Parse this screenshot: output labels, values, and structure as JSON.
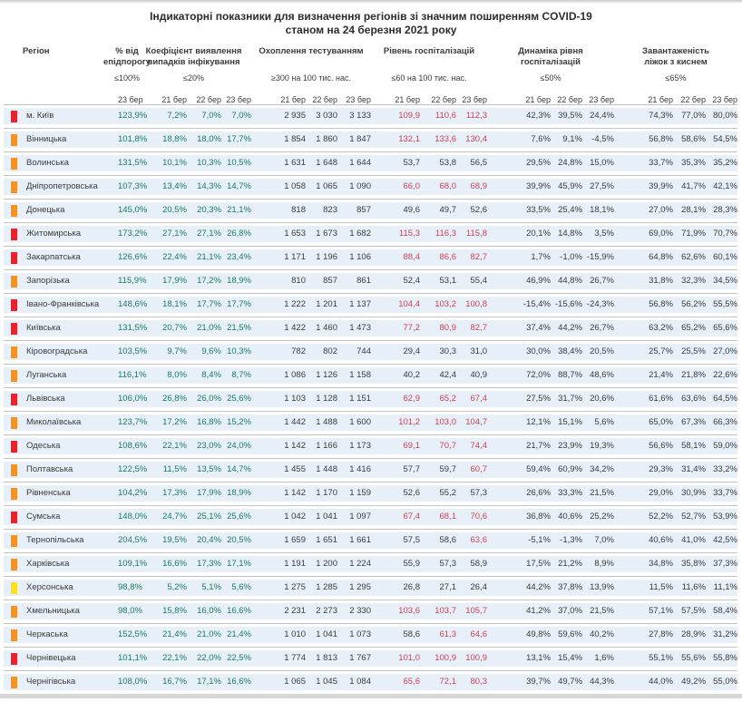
{
  "title_line1": "Індикаторні показники для визначення регіонів зі значним поширенням COVID-19",
  "title_line2": "станом на 24 березня 2021 року",
  "columns": {
    "region_label": "Регіон",
    "groups": [
      {
        "label_lines": [
          "% від",
          "епідпорогу"
        ],
        "threshold": "≤100%",
        "dates": [
          "23 бер"
        ]
      },
      {
        "label_lines": [
          "Коефіцієнт виявлення",
          "випадків інфікування"
        ],
        "threshold": "≤20%",
        "dates": [
          "21 бер",
          "22 бер",
          "23 бер"
        ]
      },
      {
        "label_lines": [
          "Охоплення тестуванням"
        ],
        "threshold": "≥300 на 100 тис. нас.",
        "dates": [
          "21 бер",
          "22 бер",
          "23 бер"
        ]
      },
      {
        "label_lines": [
          "Рівень госпіталізацій"
        ],
        "threshold": "≤60 на 100 тис. нас.",
        "dates": [
          "21 бер",
          "22 бер",
          "23 бер"
        ]
      },
      {
        "label_lines": [
          "Динаміка рівня",
          "госпіталізацій"
        ],
        "threshold": "≤50%",
        "dates": [
          "21 бер",
          "22 бер",
          "23 бер"
        ]
      },
      {
        "label_lines": [
          "Завантаженість",
          "ліжок з киснем"
        ],
        "threshold": "≤65%",
        "dates": [
          "21 бер",
          "22 бер",
          "23 бер"
        ]
      }
    ]
  },
  "colors": {
    "status_red": "#e9222c",
    "status_orange": "#f6921e",
    "status_yellow": "#ffe01e",
    "text_green": "#1c7a62",
    "text_red": "#cc3f58",
    "text_dark": "#3b3b3a",
    "row_band": "#e7f0f8"
  },
  "hosp_red_threshold": 60,
  "rows": [
    {
      "region": "м. Київ",
      "status": "red",
      "epid": "123,9%",
      "coef": [
        "7,2%",
        "7,0%",
        "7,0%"
      ],
      "test": [
        "2 935",
        "3 030",
        "3 133"
      ],
      "hosp": [
        "109,9",
        "110,6",
        "112,3"
      ],
      "dyn": [
        "42,3%",
        "39,5%",
        "24,4%"
      ],
      "beds": [
        "74,3%",
        "77,0%",
        "80,0%"
      ]
    },
    {
      "region": "Вінницька",
      "status": "orange",
      "epid": "101,8%",
      "coef": [
        "18,8%",
        "18,0%",
        "17,7%"
      ],
      "test": [
        "1 854",
        "1 860",
        "1 847"
      ],
      "hosp": [
        "132,1",
        "133,6",
        "130,4"
      ],
      "dyn": [
        "7,6%",
        "9,1%",
        "-4,5%"
      ],
      "beds": [
        "56,8%",
        "58,6%",
        "54,5%"
      ]
    },
    {
      "region": "Волинська",
      "status": "orange",
      "epid": "131,5%",
      "coef": [
        "10,1%",
        "10,3%",
        "10,5%"
      ],
      "test": [
        "1 631",
        "1 648",
        "1 644"
      ],
      "hosp": [
        "53,7",
        "53,8",
        "56,5"
      ],
      "dyn": [
        "29,5%",
        "24,8%",
        "15,0%"
      ],
      "beds": [
        "33,7%",
        "35,3%",
        "35,2%"
      ]
    },
    {
      "region": "Дніпропетровська",
      "status": "orange",
      "epid": "107,3%",
      "coef": [
        "13,4%",
        "14,3%",
        "14,7%"
      ],
      "test": [
        "1 058",
        "1 065",
        "1 090"
      ],
      "hosp": [
        "66,0",
        "68,0",
        "68,9"
      ],
      "dyn": [
        "39,9%",
        "45,9%",
        "27,5%"
      ],
      "beds": [
        "39,9%",
        "41,7%",
        "42,1%"
      ]
    },
    {
      "region": "Донецька",
      "status": "orange",
      "epid": "145,0%",
      "coef": [
        "20,5%",
        "20,3%",
        "21,1%"
      ],
      "test": [
        "818",
        "823",
        "857"
      ],
      "hosp": [
        "49,6",
        "49,7",
        "52,6"
      ],
      "dyn": [
        "33,5%",
        "25,4%",
        "18,1%"
      ],
      "beds": [
        "27,0%",
        "28,1%",
        "28,3%"
      ]
    },
    {
      "region": "Житомирська",
      "status": "red",
      "epid": "173,2%",
      "coef": [
        "27,1%",
        "27,1%",
        "26,8%"
      ],
      "test": [
        "1 653",
        "1 673",
        "1 682"
      ],
      "hosp": [
        "115,3",
        "116,3",
        "115,8"
      ],
      "dyn": [
        "20,1%",
        "14,8%",
        "3,5%"
      ],
      "beds": [
        "69,0%",
        "71,9%",
        "70,7%"
      ]
    },
    {
      "region": "Закарпатська",
      "status": "red",
      "epid": "126,6%",
      "coef": [
        "22,4%",
        "21,1%",
        "23,4%"
      ],
      "test": [
        "1 171",
        "1 196",
        "1 106"
      ],
      "hosp": [
        "88,4",
        "86,6",
        "82,7"
      ],
      "dyn": [
        "1,7%",
        "-1,0%",
        "-15,9%"
      ],
      "beds": [
        "64,8%",
        "62,6%",
        "60,1%"
      ]
    },
    {
      "region": "Запорізька",
      "status": "orange",
      "epid": "115,9%",
      "coef": [
        "17,9%",
        "17,2%",
        "18,9%"
      ],
      "test": [
        "810",
        "857",
        "861"
      ],
      "hosp": [
        "52,4",
        "53,1",
        "55,4"
      ],
      "dyn": [
        "46,9%",
        "44,8%",
        "26,7%"
      ],
      "beds": [
        "31,8%",
        "32,3%",
        "34,5%"
      ]
    },
    {
      "region": "Івано-Франківська",
      "status": "red",
      "epid": "148,6%",
      "coef": [
        "18,1%",
        "17,7%",
        "17,7%"
      ],
      "test": [
        "1 222",
        "1 201",
        "1 137"
      ],
      "hosp": [
        "104,4",
        "103,2",
        "100,8"
      ],
      "dyn": [
        "-15,4%",
        "-15,6%",
        "-24,3%"
      ],
      "beds": [
        "56,8%",
        "56,2%",
        "55,5%"
      ]
    },
    {
      "region": "Київська",
      "status": "red",
      "epid": "131,5%",
      "coef": [
        "20,7%",
        "21,0%",
        "21,5%"
      ],
      "test": [
        "1 422",
        "1 460",
        "1 473"
      ],
      "hosp": [
        "77,2",
        "80,9",
        "82,7"
      ],
      "dyn": [
        "37,4%",
        "44,2%",
        "26,7%"
      ],
      "beds": [
        "63,2%",
        "65,2%",
        "65,6%"
      ]
    },
    {
      "region": "Кіровоградська",
      "status": "orange",
      "epid": "103,5%",
      "coef": [
        "9,7%",
        "9,6%",
        "10,3%"
      ],
      "test": [
        "782",
        "802",
        "744"
      ],
      "hosp": [
        "29,4",
        "30,3",
        "31,0"
      ],
      "dyn": [
        "30,0%",
        "38,4%",
        "20,5%"
      ],
      "beds": [
        "25,7%",
        "25,5%",
        "27,0%"
      ]
    },
    {
      "region": "Луганська",
      "status": "orange",
      "epid": "116,1%",
      "coef": [
        "8,0%",
        "8,4%",
        "8,7%"
      ],
      "test": [
        "1 086",
        "1 126",
        "1 158"
      ],
      "hosp": [
        "40,2",
        "42,4",
        "40,9"
      ],
      "dyn": [
        "72,0%",
        "88,7%",
        "48,6%"
      ],
      "beds": [
        "21,4%",
        "21,8%",
        "22,6%"
      ]
    },
    {
      "region": "Львівська",
      "status": "red",
      "epid": "106,0%",
      "coef": [
        "26,8%",
        "26,0%",
        "25,6%"
      ],
      "test": [
        "1 103",
        "1 128",
        "1 151"
      ],
      "hosp": [
        "62,9",
        "65,2",
        "67,4"
      ],
      "dyn": [
        "27,5%",
        "31,7%",
        "20,6%"
      ],
      "beds": [
        "61,6%",
        "63,6%",
        "64,5%"
      ]
    },
    {
      "region": "Миколаївська",
      "status": "orange",
      "epid": "123,7%",
      "coef": [
        "17,2%",
        "16,8%",
        "15,2%"
      ],
      "test": [
        "1 442",
        "1 488",
        "1 600"
      ],
      "hosp": [
        "101,2",
        "103,0",
        "104,7"
      ],
      "dyn": [
        "12,1%",
        "15,1%",
        "5,6%"
      ],
      "beds": [
        "65,0%",
        "67,3%",
        "66,3%"
      ]
    },
    {
      "region": "Одеська",
      "status": "red",
      "epid": "108,6%",
      "coef": [
        "22,1%",
        "23,0%",
        "24,0%"
      ],
      "test": [
        "1 142",
        "1 166",
        "1 173"
      ],
      "hosp": [
        "69,1",
        "70,7",
        "74,4"
      ],
      "dyn": [
        "21,7%",
        "23,9%",
        "19,3%"
      ],
      "beds": [
        "56,6%",
        "58,1%",
        "59,0%"
      ]
    },
    {
      "region": "Полтавська",
      "status": "orange",
      "epid": "122,5%",
      "coef": [
        "11,5%",
        "13,5%",
        "14,7%"
      ],
      "test": [
        "1 455",
        "1 448",
        "1 416"
      ],
      "hosp": [
        "57,7",
        "59,7",
        "60,7"
      ],
      "dyn": [
        "59,4%",
        "60,9%",
        "34,2%"
      ],
      "beds": [
        "29,3%",
        "31,4%",
        "33,2%"
      ]
    },
    {
      "region": "Рівненська",
      "status": "orange",
      "epid": "104,2%",
      "coef": [
        "17,3%",
        "17,9%",
        "18,9%"
      ],
      "test": [
        "1 142",
        "1 170",
        "1 159"
      ],
      "hosp": [
        "52,6",
        "55,2",
        "57,3"
      ],
      "dyn": [
        "26,6%",
        "33,3%",
        "21,5%"
      ],
      "beds": [
        "29,0%",
        "30,9%",
        "33,7%"
      ]
    },
    {
      "region": "Сумська",
      "status": "red",
      "epid": "148,0%",
      "coef": [
        "24,7%",
        "25,1%",
        "25,6%"
      ],
      "test": [
        "1 042",
        "1 041",
        "1 097"
      ],
      "hosp": [
        "67,4",
        "68,1",
        "70,6"
      ],
      "dyn": [
        "36,8%",
        "40,6%",
        "25,2%"
      ],
      "beds": [
        "52,2%",
        "52,7%",
        "53,9%"
      ]
    },
    {
      "region": "Тернопільська",
      "status": "orange",
      "epid": "204,5%",
      "coef": [
        "19,5%",
        "20,4%",
        "20,5%"
      ],
      "test": [
        "1 659",
        "1 651",
        "1 661"
      ],
      "hosp": [
        "57,5",
        "58,6",
        "63,6"
      ],
      "dyn": [
        "-5,1%",
        "-1,3%",
        "7,0%"
      ],
      "beds": [
        "40,6%",
        "41,0%",
        "42,5%"
      ]
    },
    {
      "region": "Харківська",
      "status": "orange",
      "epid": "109,1%",
      "coef": [
        "16,6%",
        "17,3%",
        "17,1%"
      ],
      "test": [
        "1 191",
        "1 200",
        "1 224"
      ],
      "hosp": [
        "55,9",
        "57,3",
        "58,9"
      ],
      "dyn": [
        "17,5%",
        "21,2%",
        "8,9%"
      ],
      "beds": [
        "34,8%",
        "35,8%",
        "37,3%"
      ]
    },
    {
      "region": "Херсонська",
      "status": "yellow",
      "epid": "98,8%",
      "coef": [
        "5,2%",
        "5,1%",
        "5,6%"
      ],
      "test": [
        "1 275",
        "1 285",
        "1 295"
      ],
      "hosp": [
        "26,8",
        "27,1",
        "26,4"
      ],
      "dyn": [
        "44,2%",
        "37,8%",
        "13,9%"
      ],
      "beds": [
        "11,5%",
        "11,6%",
        "11,1%"
      ]
    },
    {
      "region": "Хмельницька",
      "status": "orange",
      "epid": "98,0%",
      "coef": [
        "15,8%",
        "16,0%",
        "16,6%"
      ],
      "test": [
        "2 231",
        "2 273",
        "2 330"
      ],
      "hosp": [
        "103,6",
        "103,7",
        "105,7"
      ],
      "dyn": [
        "41,2%",
        "37,0%",
        "21,5%"
      ],
      "beds": [
        "57,1%",
        "57,5%",
        "58,4%"
      ]
    },
    {
      "region": "Черкаська",
      "status": "orange",
      "epid": "152,5%",
      "coef": [
        "21,4%",
        "21,0%",
        "21,4%"
      ],
      "test": [
        "1 010",
        "1 041",
        "1 073"
      ],
      "hosp": [
        "58,6",
        "61,3",
        "64,6"
      ],
      "dyn": [
        "49,8%",
        "59,6%",
        "40,2%"
      ],
      "beds": [
        "27,8%",
        "28,9%",
        "31,2%"
      ]
    },
    {
      "region": "Чернівецька",
      "status": "red",
      "epid": "101,1%",
      "coef": [
        "22,1%",
        "22,0%",
        "22,5%"
      ],
      "test": [
        "1 774",
        "1 813",
        "1 767"
      ],
      "hosp": [
        "101,0",
        "100,9",
        "100,9"
      ],
      "dyn": [
        "13,1%",
        "15,4%",
        "1,6%"
      ],
      "beds": [
        "55,1%",
        "55,6%",
        "55,8%"
      ]
    },
    {
      "region": "Чернігівська",
      "status": "orange",
      "epid": "108,0%",
      "coef": [
        "16,7%",
        "17,1%",
        "16,6%"
      ],
      "test": [
        "1 065",
        "1 045",
        "1 084"
      ],
      "hosp": [
        "65,6",
        "72,1",
        "80,3"
      ],
      "dyn": [
        "39,7%",
        "49,7%",
        "44,3%"
      ],
      "beds": [
        "44,0%",
        "49,2%",
        "55,0%"
      ]
    }
  ]
}
